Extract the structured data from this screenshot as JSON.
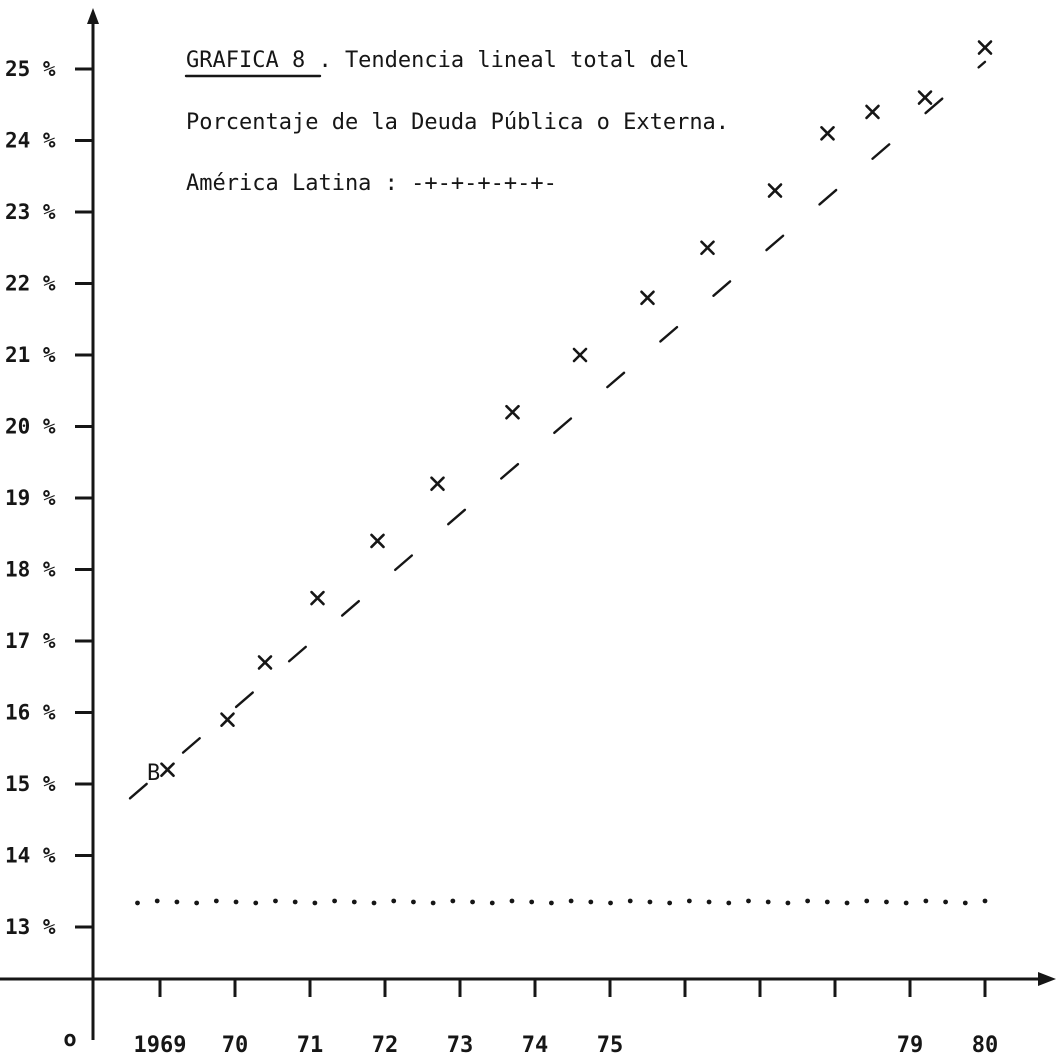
{
  "chart_data": {
    "type": "scatter",
    "title_lines": [
      "GRAFICA  8 .  Tendencia lineal total del",
      "Porcentaje de la Deuda Pública o Externa."
    ],
    "legend_text": "América Latina :  -+-+-+-+-+-",
    "origin_label": "o",
    "point_label": "B",
    "y_ticks": [
      {
        "value": 13,
        "label": "13 %"
      },
      {
        "value": 14,
        "label": "14 %"
      },
      {
        "value": 15,
        "label": "15 %"
      },
      {
        "value": 16,
        "label": "16 %"
      },
      {
        "value": 17,
        "label": "17 %"
      },
      {
        "value": 18,
        "label": "18 %"
      },
      {
        "value": 19,
        "label": "19 %"
      },
      {
        "value": 20,
        "label": "20 %"
      },
      {
        "value": 21,
        "label": "21 %"
      },
      {
        "value": 22,
        "label": "22 %"
      },
      {
        "value": 23,
        "label": "23 %"
      },
      {
        "value": 24,
        "label": "24 %"
      },
      {
        "value": 25,
        "label": "25 %"
      }
    ],
    "x_ticks": [
      {
        "value": 1969,
        "label": "1969"
      },
      {
        "value": 1970,
        "label": "70"
      },
      {
        "value": 1971,
        "label": "71"
      },
      {
        "value": 1972,
        "label": "72"
      },
      {
        "value": 1973,
        "label": "73"
      },
      {
        "value": 1974,
        "label": "74"
      },
      {
        "value": 1975,
        "label": "75"
      },
      {
        "value": 1976,
        "label": ""
      },
      {
        "value": 1977,
        "label": ""
      },
      {
        "value": 1978,
        "label": ""
      },
      {
        "value": 1979,
        "label": "79"
      },
      {
        "value": 1980,
        "label": "80"
      }
    ],
    "series": [
      {
        "marker": "x",
        "points": [
          {
            "x": 1969.1,
            "y": 15.2
          },
          {
            "x": 1969.9,
            "y": 15.9
          },
          {
            "x": 1970.4,
            "y": 16.7
          },
          {
            "x": 1971.1,
            "y": 17.6
          },
          {
            "x": 1971.9,
            "y": 18.4
          },
          {
            "x": 1972.7,
            "y": 19.2
          },
          {
            "x": 1973.7,
            "y": 20.2
          },
          {
            "x": 1974.6,
            "y": 21.0
          },
          {
            "x": 1975.5,
            "y": 21.8
          },
          {
            "x": 1976.3,
            "y": 22.5
          },
          {
            "x": 1977.2,
            "y": 23.3
          },
          {
            "x": 1977.9,
            "y": 24.1
          },
          {
            "x": 1978.5,
            "y": 24.4
          },
          {
            "x": 1979.2,
            "y": 24.6
          },
          {
            "x": 1980.0,
            "y": 25.3
          }
        ]
      }
    ],
    "trend_line": {
      "x_start": 1968.6,
      "y_start": 14.8,
      "x_end": 1980.0,
      "y_end": 25.1
    },
    "dotted_line": {
      "x_start": 1968.7,
      "x_end": 1980.0,
      "y": 13.35
    },
    "xlim": [
      1968.0,
      1980.0
    ],
    "ylim": [
      11.8,
      26.0
    ]
  }
}
